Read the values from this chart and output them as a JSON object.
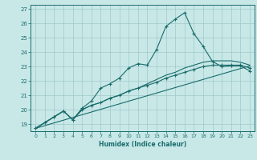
{
  "xlabel": "Humidex (Indice chaleur)",
  "bg_color": "#c8e8e8",
  "grid_color": "#a0c8c8",
  "line_color": "#1a6b6b",
  "xlim": [
    -0.5,
    23.5
  ],
  "ylim": [
    18.5,
    27.3
  ],
  "xticks": [
    0,
    1,
    2,
    3,
    4,
    5,
    6,
    7,
    8,
    9,
    10,
    11,
    12,
    13,
    14,
    15,
    16,
    17,
    18,
    19,
    20,
    21,
    22,
    23
  ],
  "yticks": [
    19,
    20,
    21,
    22,
    23,
    24,
    25,
    26,
    27
  ],
  "line1_x": [
    0,
    1,
    2,
    3,
    4,
    5,
    6,
    7,
    8,
    9,
    10,
    11,
    12,
    13,
    14,
    15,
    16,
    17,
    18,
    19,
    20,
    21,
    22,
    23
  ],
  "line1_y": [
    18.7,
    19.1,
    19.5,
    19.9,
    19.3,
    20.1,
    20.6,
    21.5,
    21.8,
    22.2,
    22.9,
    23.2,
    23.1,
    24.2,
    25.8,
    26.3,
    26.75,
    25.3,
    24.4,
    23.35,
    23.0,
    23.05,
    23.05,
    22.7
  ],
  "line2_x": [
    0,
    1,
    2,
    3,
    4,
    5,
    6,
    7,
    8,
    9,
    10,
    11,
    12,
    13,
    14,
    15,
    16,
    17,
    18,
    19,
    20,
    21,
    22,
    23
  ],
  "line2_y": [
    18.7,
    19.1,
    19.5,
    19.9,
    19.3,
    20.0,
    20.3,
    20.5,
    20.8,
    21.0,
    21.3,
    21.5,
    21.7,
    21.9,
    22.2,
    22.4,
    22.6,
    22.8,
    23.0,
    23.1,
    23.1,
    23.1,
    23.1,
    22.9
  ],
  "line3_x": [
    0,
    1,
    2,
    3,
    4,
    5,
    6,
    7,
    8,
    9,
    10,
    11,
    12,
    13,
    14,
    15,
    16,
    17,
    18,
    19,
    20,
    21,
    22,
    23
  ],
  "line3_y": [
    18.7,
    19.1,
    19.5,
    19.9,
    19.3,
    20.0,
    20.3,
    20.5,
    20.8,
    21.0,
    21.3,
    21.5,
    21.8,
    22.1,
    22.4,
    22.6,
    22.9,
    23.1,
    23.3,
    23.4,
    23.4,
    23.4,
    23.3,
    23.1
  ],
  "line4_x": [
    0,
    23
  ],
  "line4_y": [
    18.7,
    23.05
  ]
}
